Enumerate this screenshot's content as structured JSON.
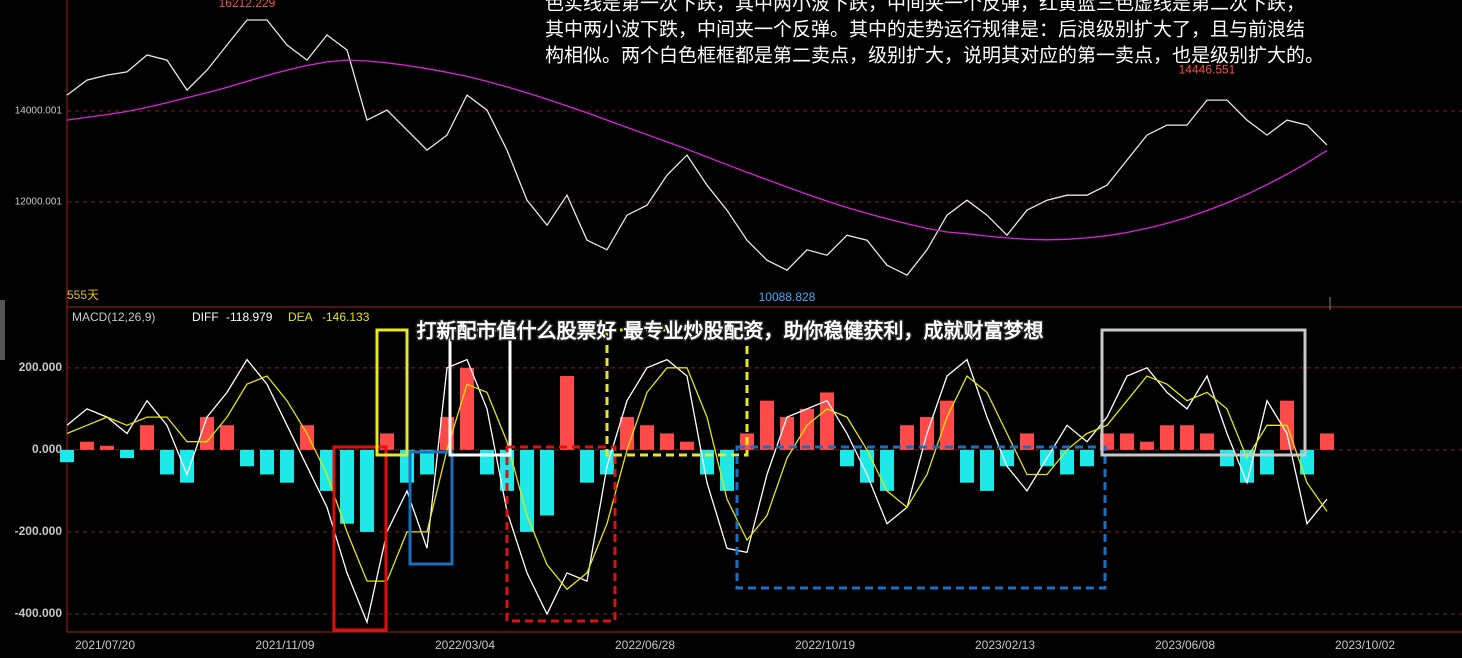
{
  "overlay": {
    "paragraph": [
      "色实线是第一次下跌，其中两小波下跌，中间夹一个反弹，红黄蓝三色虚线是第二次下跌，",
      "其中两小波下跌，中间夹一个反弹。其中的走势运行规律是：后浪级别扩大了，且与前浪结",
      "构相似。两个白色框框都是第二卖点，级别扩大，说明其对应的第一卖点，也是级别扩大的。"
    ],
    "banner": "打新配市值什么股票好 最专业炒股配资，助你稳健获利，成就财富梦想"
  },
  "chart_data": [
    {
      "type": "line",
      "ylim": [
        9736,
        16440
      ],
      "yticks": [
        14000.001,
        12000.001
      ],
      "grid": true,
      "annotations": [
        {
          "text": "16212.229",
          "index": 9,
          "color": "#ff4d4d"
        },
        {
          "text": "14446.551",
          "index": 57,
          "color": "#ff4d4d"
        },
        {
          "text": "10088.828",
          "index": 36,
          "color": "#3ab0ff"
        }
      ],
      "series": [
        {
          "name": null,
          "color": "#e8e8e8",
          "values": [
            14350,
            14680,
            14790,
            14860,
            15230,
            15120,
            14460,
            14900,
            15450,
            16000,
            16000,
            15450,
            15120,
            15670,
            15340,
            13800,
            14020,
            13580,
            13140,
            13470,
            14350,
            14020,
            13140,
            12040,
            11490,
            12150,
            11160,
            10950,
            11710,
            11930,
            12590,
            13030,
            12370,
            11820,
            11160,
            10720,
            10500,
            10950,
            10830,
            11270,
            11160,
            10610,
            10390,
            10950,
            11710,
            12040,
            11710,
            11270,
            11820,
            12040,
            12150,
            12150,
            12370,
            12920,
            13470,
            13690,
            13690,
            14240,
            14240,
            13800,
            13470,
            13800,
            13690,
            13250
          ]
        },
        {
          "name": "555天",
          "color": "#e020e0",
          "values": [
            13800,
            13860,
            13920,
            13990,
            14080,
            14180,
            14290,
            14400,
            14520,
            14650,
            14780,
            14900,
            15000,
            15080,
            15120,
            15100,
            15060,
            15000,
            14930,
            14850,
            14760,
            14650,
            14530,
            14400,
            14260,
            14110,
            13960,
            13800,
            13640,
            13480,
            13320,
            13160,
            12990,
            12820,
            12650,
            12490,
            12330,
            12170,
            12020,
            11880,
            11750,
            11630,
            11520,
            11420,
            11340,
            11300,
            11250,
            11210,
            11180,
            11170,
            11180,
            11210,
            11260,
            11330,
            11420,
            11530,
            11660,
            11810,
            11980,
            12170,
            12380,
            12610,
            12860,
            13130
          ]
        }
      ]
    },
    {
      "type": "macd",
      "title": "MACD(12,26,9)",
      "categories": [
        "2021/07/20",
        null,
        null,
        null,
        null,
        null,
        null,
        null,
        null,
        "2021/11/09",
        null,
        null,
        null,
        null,
        null,
        null,
        null,
        null,
        "2022/03/04",
        null,
        null,
        null,
        null,
        null,
        null,
        null,
        null,
        "2022/06/28",
        null,
        null,
        null,
        null,
        null,
        null,
        null,
        null,
        "2022/10/19",
        null,
        null,
        null,
        null,
        null,
        null,
        null,
        null,
        "2023/02/13",
        null,
        null,
        null,
        null,
        null,
        null,
        null,
        null,
        "2023/06/08",
        null,
        null,
        null,
        null,
        null,
        null,
        null,
        null,
        "2023/10/02"
      ],
      "ylim": [
        -444,
        341
      ],
      "yticks": [
        {
          "value": 200,
          "label": "200.000"
        },
        {
          "value": 0,
          "label": "0.000"
        },
        {
          "value": -200,
          "label": "-200.000"
        },
        {
          "value": -400,
          "label": "-400.000"
        }
      ],
      "grid": true,
      "histogram": {
        "up_color": "#ff4a4a",
        "down_color": "#1de9e9",
        "values": [
          -30,
          20,
          10,
          -20,
          60,
          -60,
          -80,
          80,
          60,
          -40,
          -60,
          -80,
          60,
          -100,
          -180,
          -200,
          40,
          -80,
          -60,
          80,
          200,
          -60,
          -100,
          -200,
          -160,
          180,
          -80,
          -60,
          80,
          60,
          40,
          20,
          -60,
          -100,
          40,
          120,
          80,
          100,
          140,
          -40,
          -80,
          -100,
          60,
          80,
          120,
          -80,
          -100,
          -40,
          40,
          -40,
          -60,
          -40,
          40,
          40,
          20,
          60,
          60,
          40,
          -40,
          -80,
          -60,
          120,
          -60,
          40
        ]
      },
      "series": [
        {
          "name": "DIFF",
          "readout": "-118.979",
          "color": "#ffffff",
          "values": [
            60,
            100,
            80,
            40,
            120,
            60,
            -60,
            80,
            140,
            220,
            160,
            60,
            -40,
            -140,
            -300,
            -420,
            -200,
            -100,
            -240,
            200,
            220,
            100,
            -150,
            -300,
            -400,
            -300,
            -320,
            -40,
            120,
            200,
            220,
            180,
            -80,
            -240,
            -250,
            -60,
            80,
            100,
            120,
            40,
            -60,
            -180,
            -140,
            40,
            180,
            220,
            80,
            -40,
            -100,
            -20,
            60,
            20,
            80,
            180,
            200,
            140,
            100,
            180,
            40,
            -80,
            120,
            40,
            -180,
            -120
          ]
        },
        {
          "name": "DEA",
          "readout": "-146.133",
          "color": "#e6e600",
          "values": [
            40,
            60,
            80,
            60,
            80,
            80,
            20,
            20,
            80,
            160,
            180,
            120,
            40,
            -60,
            -200,
            -320,
            -320,
            -200,
            -200,
            0,
            160,
            140,
            20,
            -160,
            -280,
            -340,
            -300,
            -180,
            0,
            140,
            200,
            200,
            80,
            -120,
            -220,
            -160,
            -20,
            60,
            100,
            80,
            0,
            -100,
            -140,
            -60,
            80,
            180,
            140,
            40,
            -60,
            -60,
            0,
            40,
            60,
            120,
            180,
            160,
            120,
            140,
            100,
            -20,
            60,
            60,
            -80,
            -150
          ]
        }
      ]
    }
  ]
}
